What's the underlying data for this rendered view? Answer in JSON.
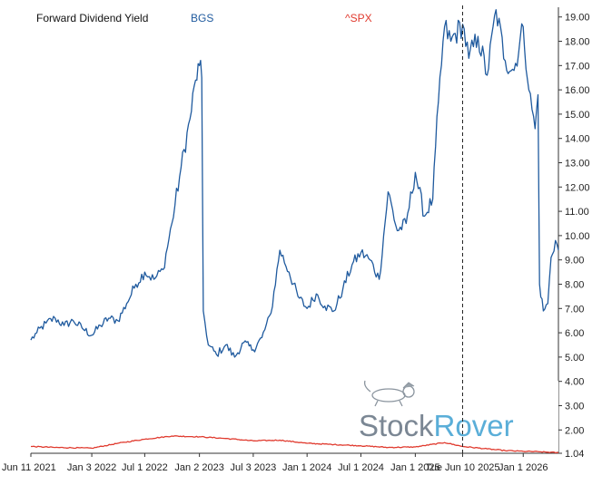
{
  "chart_data": {
    "type": "line",
    "title": "Forward Dividend Yield",
    "x_axis": {
      "tick_labels": [
        "Jun 11 2021",
        "Jan 3 2022",
        "Jul 1 2022",
        "Jan 2 2023",
        "Jul 3 2023",
        "Jan 1 2024",
        "Jul 1 2024",
        "Jan 1 2025",
        "Tue Jun 10 2025",
        "Jan 1 2026"
      ],
      "tick_dates": [
        "2021-06-11",
        "2022-01-03",
        "2022-07-01",
        "2023-01-02",
        "2023-07-03",
        "2024-01-01",
        "2024-07-01",
        "2025-01-01",
        "2025-06-10",
        "2026-01-01"
      ],
      "range": [
        "2021-06-11",
        "2026-04-30"
      ],
      "cursor_date": "2025-06-10"
    },
    "y_axis": {
      "position": "right",
      "ticks": [
        1.04,
        2.0,
        3.0,
        4.0,
        5.0,
        6.0,
        7.0,
        8.0,
        9.0,
        10.0,
        11.0,
        12.0,
        13.0,
        14.0,
        15.0,
        16.0,
        17.0,
        18.0,
        19.0
      ],
      "tick_labels": [
        "1.04",
        "2.00",
        "3.00",
        "4.00",
        "5.00",
        "6.00",
        "7.00",
        "8.00",
        "9.00",
        "10.00",
        "11.00",
        "12.00",
        "13.00",
        "14.00",
        "15.00",
        "16.00",
        "17.00",
        "18.00",
        "19.00"
      ],
      "range": [
        1.04,
        19.4
      ]
    },
    "grid": false,
    "legend_position": "top",
    "series": [
      {
        "name": "BGS",
        "color": "#1f5a9e",
        "points": [
          [
            "2021-06-11",
            5.7
          ],
          [
            "2021-07-01",
            6.0
          ],
          [
            "2021-08-01",
            6.4
          ],
          [
            "2021-09-01",
            6.6
          ],
          [
            "2021-10-01",
            6.3
          ],
          [
            "2021-11-01",
            6.5
          ],
          [
            "2021-12-01",
            6.2
          ],
          [
            "2022-01-03",
            5.9
          ],
          [
            "2022-02-01",
            6.3
          ],
          [
            "2022-03-01",
            6.6
          ],
          [
            "2022-04-01",
            6.5
          ],
          [
            "2022-05-01",
            7.2
          ],
          [
            "2022-06-01",
            8.0
          ],
          [
            "2022-07-01",
            8.5
          ],
          [
            "2022-08-01",
            8.2
          ],
          [
            "2022-09-01",
            8.6
          ],
          [
            "2022-10-01",
            10.5
          ],
          [
            "2022-11-01",
            12.8
          ],
          [
            "2022-12-01",
            14.8
          ],
          [
            "2022-12-20",
            16.4
          ],
          [
            "2023-01-02",
            17.0
          ],
          [
            "2023-01-10",
            16.5
          ],
          [
            "2023-01-15",
            6.9
          ],
          [
            "2023-02-01",
            5.5
          ],
          [
            "2023-03-01",
            5.1
          ],
          [
            "2023-04-01",
            5.5
          ],
          [
            "2023-05-01",
            5.0
          ],
          [
            "2023-06-01",
            5.6
          ],
          [
            "2023-07-03",
            5.3
          ],
          [
            "2023-08-01",
            5.8
          ],
          [
            "2023-09-01",
            6.8
          ],
          [
            "2023-10-01",
            9.4
          ],
          [
            "2023-11-01",
            8.5
          ],
          [
            "2023-12-01",
            7.5
          ],
          [
            "2024-01-01",
            7.0
          ],
          [
            "2024-02-01",
            7.6
          ],
          [
            "2024-03-01",
            7.1
          ],
          [
            "2024-04-01",
            6.9
          ],
          [
            "2024-05-01",
            7.8
          ],
          [
            "2024-06-01",
            8.8
          ],
          [
            "2024-07-01",
            9.3
          ],
          [
            "2024-08-01",
            9.0
          ],
          [
            "2024-09-01",
            8.2
          ],
          [
            "2024-10-01",
            11.8
          ],
          [
            "2024-11-01",
            10.2
          ],
          [
            "2024-12-01",
            10.5
          ],
          [
            "2025-01-01",
            12.6
          ],
          [
            "2025-02-01",
            10.8
          ],
          [
            "2025-03-01",
            11.5
          ],
          [
            "2025-03-20",
            15.5
          ],
          [
            "2025-04-10",
            18.6
          ],
          [
            "2025-05-01",
            18.0
          ],
          [
            "2025-06-10",
            18.7
          ],
          [
            "2025-07-01",
            17.3
          ],
          [
            "2025-08-01",
            18.2
          ],
          [
            "2025-09-01",
            16.6
          ],
          [
            "2025-10-01",
            19.3
          ],
          [
            "2025-11-01",
            17.2
          ],
          [
            "2025-12-01",
            16.8
          ],
          [
            "2026-01-01",
            18.6
          ],
          [
            "2026-01-20",
            16.0
          ],
          [
            "2026-02-10",
            14.4
          ],
          [
            "2026-02-20",
            15.8
          ],
          [
            "2026-02-25",
            8.0
          ],
          [
            "2026-03-10",
            6.9
          ],
          [
            "2026-03-25",
            7.2
          ],
          [
            "2026-04-05",
            9.1
          ],
          [
            "2026-04-20",
            9.8
          ],
          [
            "2026-04-30",
            9.4
          ]
        ]
      },
      {
        "name": "^SPX",
        "color": "#e03a2e",
        "points": [
          [
            "2021-06-11",
            1.32
          ],
          [
            "2021-09-01",
            1.28
          ],
          [
            "2022-01-03",
            1.25
          ],
          [
            "2022-04-01",
            1.45
          ],
          [
            "2022-07-01",
            1.62
          ],
          [
            "2022-10-01",
            1.75
          ],
          [
            "2023-01-02",
            1.72
          ],
          [
            "2023-04-01",
            1.65
          ],
          [
            "2023-07-03",
            1.55
          ],
          [
            "2023-10-01",
            1.58
          ],
          [
            "2024-01-01",
            1.45
          ],
          [
            "2024-04-01",
            1.4
          ],
          [
            "2024-07-01",
            1.35
          ],
          [
            "2024-10-01",
            1.28
          ],
          [
            "2025-01-01",
            1.3
          ],
          [
            "2025-04-10",
            1.48
          ],
          [
            "2025-06-10",
            1.32
          ],
          [
            "2025-09-01",
            1.22
          ],
          [
            "2025-11-01",
            1.15
          ],
          [
            "2026-01-01",
            1.12
          ],
          [
            "2026-03-01",
            1.1
          ],
          [
            "2026-04-30",
            1.06
          ]
        ]
      }
    ]
  },
  "watermark": {
    "brand_part_1": "Stock",
    "brand_part_2": "Rover",
    "color_1": "#7b8794",
    "color_2": "#5aaed8"
  }
}
